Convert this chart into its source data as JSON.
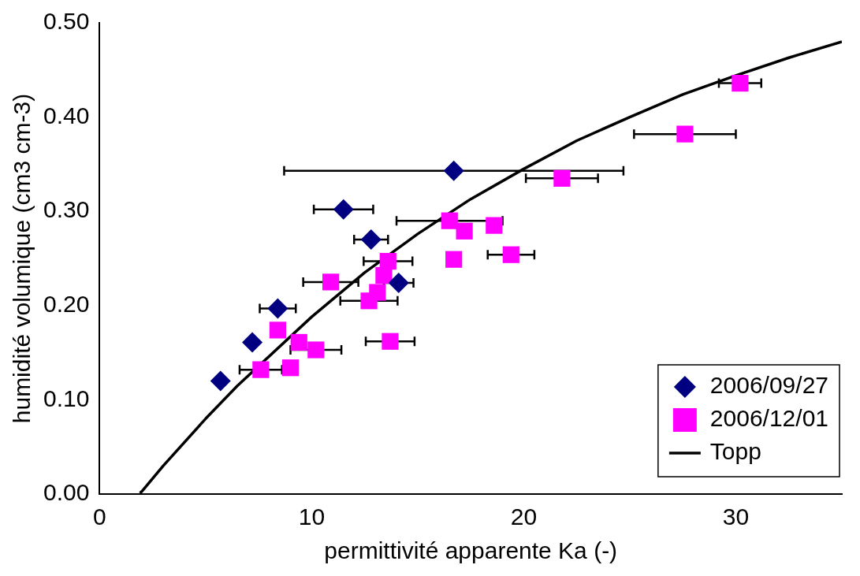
{
  "chart_data": {
    "type": "scatter",
    "xlabel": "permittivité apparente Ka (-)",
    "ylabel": "humidité volumique (cm3 cm-3)",
    "xlim": [
      0,
      35
    ],
    "xticks": [
      0,
      10,
      20,
      30
    ],
    "ylim": [
      0,
      0.5
    ],
    "yticks": [
      {
        "value": 0,
        "label": "0.00"
      },
      {
        "value": 0.1,
        "label": "0.10"
      },
      {
        "value": 0.2,
        "label": "0.20"
      },
      {
        "value": 0.3,
        "label": "0.30"
      },
      {
        "value": 0.4,
        "label": "0.40"
      },
      {
        "value": 0.5,
        "label": "0.50"
      }
    ],
    "grid": false,
    "legend": "bottom right",
    "series": [
      {
        "name": "2006/09/27",
        "type": "scatter",
        "marker": "diamond",
        "color": "#000080",
        "x": [
          5.7,
          7.2,
          8.4,
          11.5,
          12.8,
          14.1,
          16.7
        ],
        "values": [
          0.12,
          0.161,
          0.197,
          0.302,
          0.27,
          0.224,
          0.343
        ],
        "xerrors": [
          null,
          null,
          0.85,
          1.4,
          0.8,
          0.7,
          8
        ]
      },
      {
        "name": "2006/12/01",
        "type": "scatter",
        "marker": "square",
        "color": "#ff00ff",
        "x": [
          7.6,
          8.4,
          9.0,
          9.4,
          10.2,
          10.9,
          12.7,
          13.1,
          13.4,
          13.6,
          13.7,
          16.5,
          17.2,
          16.7,
          18.6,
          19.4,
          21.8,
          27.6,
          30.2
        ],
        "values": [
          0.132,
          0.174,
          0.134,
          0.161,
          0.153,
          0.225,
          0.205,
          0.214,
          0.232,
          0.247,
          0.162,
          0.29,
          0.279,
          0.249,
          0.285,
          0.254,
          0.335,
          0.382,
          0.436
        ],
        "xerrors": [
          1,
          null,
          null,
          null,
          1.2,
          1.3,
          1.35,
          null,
          null,
          1.15,
          1.15,
          2.5,
          null,
          null,
          null,
          1.1,
          1.7,
          2.4,
          1
        ]
      },
      {
        "name": "Topp",
        "type": "line",
        "marker": "none",
        "line_style": "solid",
        "color": "#000000",
        "x": [
          1.9,
          2,
          3,
          5,
          6.5,
          10,
          12.5,
          15,
          17.5,
          20,
          22.5,
          25,
          27.5,
          30,
          32.5,
          35
        ],
        "values": [
          0.001,
          0.003,
          0.03,
          0.08,
          0.115,
          0.188,
          0.235,
          0.276,
          0.313,
          0.345,
          0.375,
          0.4,
          0.424,
          0.444,
          0.463,
          0.48
        ]
      }
    ]
  }
}
